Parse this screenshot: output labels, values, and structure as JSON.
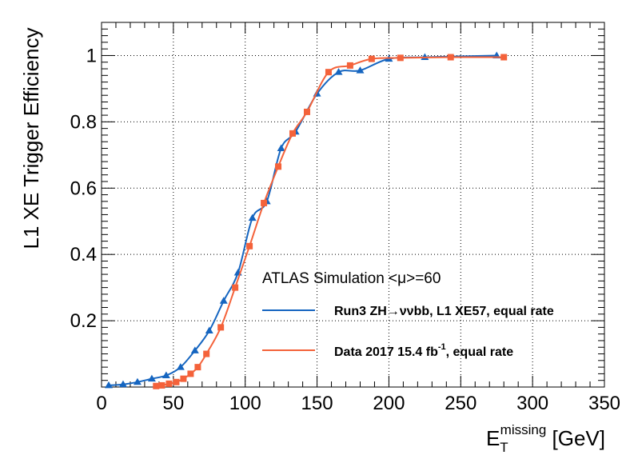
{
  "chart_data": {
    "type": "line",
    "xlim": [
      0,
      350
    ],
    "ylim": [
      0,
      1.1
    ],
    "grid": true,
    "legend_placement": "bottom-right",
    "xticks": [
      0,
      50,
      100,
      150,
      200,
      250,
      300,
      350
    ],
    "yticks": [
      0.2,
      0.4,
      0.6,
      0.8,
      1
    ],
    "xticks_labels": [
      "0",
      "50",
      "100",
      "150",
      "200",
      "250",
      "300",
      "350"
    ],
    "yticks_labels": [
      "0.2",
      "0.4",
      "0.6",
      "0.8",
      "1"
    ],
    "ylabel": "L1 XE Trigger Efficiency",
    "xlabel": {
      "base": "E",
      "sup": "missing",
      "sub": "T",
      "unit": " [GeV]"
    },
    "annotation": "ATLAS Simulation <μ>=60",
    "series": [
      {
        "name": "Run3 ZH→ννbb, L1 XE57, equal rate",
        "color": "#1565c0",
        "marker": "triangle",
        "x": [
          5,
          15,
          25,
          35,
          45,
          55,
          65,
          75,
          85,
          95,
          105,
          115,
          125,
          135,
          150,
          165,
          180,
          200,
          225,
          275
        ],
        "y": [
          0.005,
          0.008,
          0.015,
          0.025,
          0.035,
          0.06,
          0.11,
          0.17,
          0.26,
          0.345,
          0.51,
          0.56,
          0.72,
          0.77,
          0.885,
          0.95,
          0.955,
          0.99,
          0.995,
          1.0
        ]
      },
      {
        "name": "Data 2017 15.4 fb-1, equal rate",
        "label_main": "Data 2017 15.4 fb",
        "label_sup": "-1",
        "label_tail": ", equal rate",
        "color": "#f4623a",
        "marker": "square",
        "x": [
          38,
          42,
          47,
          52,
          57,
          62,
          67,
          73,
          83,
          93,
          103,
          113,
          123,
          133,
          143,
          158,
          173,
          188,
          208,
          243,
          280
        ],
        "y": [
          0.003,
          0.005,
          0.01,
          0.015,
          0.025,
          0.04,
          0.06,
          0.1,
          0.18,
          0.3,
          0.425,
          0.555,
          0.665,
          0.765,
          0.83,
          0.95,
          0.97,
          0.99,
          0.993,
          0.995,
          0.995
        ]
      }
    ]
  }
}
